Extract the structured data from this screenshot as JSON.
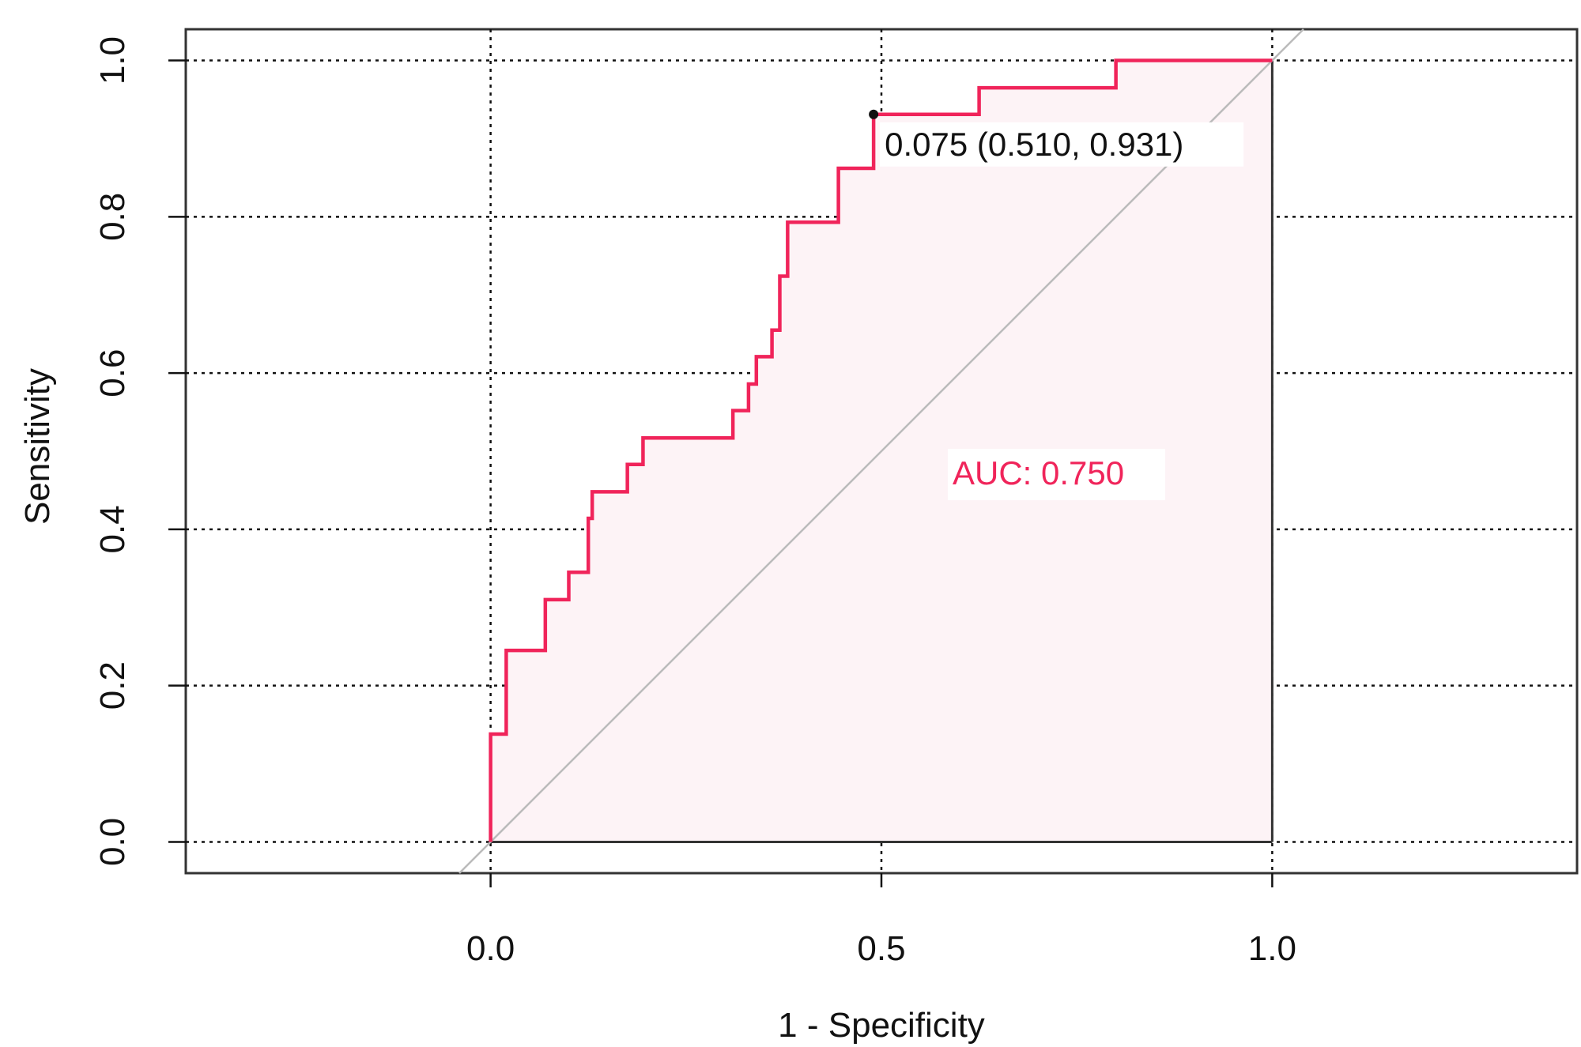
{
  "chart_data": {
    "type": "line",
    "title": "",
    "xlabel": "1 - Specificity",
    "ylabel": "Sensitivity",
    "xlim": [
      -0.39,
      1.39
    ],
    "ylim": [
      -0.04,
      1.04
    ],
    "x_ticks": [
      "0.0",
      "0.5",
      "1.0"
    ],
    "y_ticks": [
      "0.0",
      "0.2",
      "0.4",
      "0.6",
      "0.8",
      "1.0"
    ],
    "grid": true,
    "series": [
      {
        "name": "",
        "color": "#f0245a",
        "fill": "#fdf3f6",
        "points": [
          [
            0.0,
            0.0
          ],
          [
            0.0,
            0.138
          ],
          [
            0.02,
            0.138
          ],
          [
            0.02,
            0.245
          ],
          [
            0.07,
            0.245
          ],
          [
            0.07,
            0.31
          ],
          [
            0.1,
            0.31
          ],
          [
            0.1,
            0.345
          ],
          [
            0.125,
            0.345
          ],
          [
            0.125,
            0.414
          ],
          [
            0.13,
            0.414
          ],
          [
            0.13,
            0.448
          ],
          [
            0.175,
            0.448
          ],
          [
            0.175,
            0.483
          ],
          [
            0.195,
            0.483
          ],
          [
            0.195,
            0.517
          ],
          [
            0.31,
            0.517
          ],
          [
            0.31,
            0.552
          ],
          [
            0.33,
            0.552
          ],
          [
            0.33,
            0.586
          ],
          [
            0.34,
            0.586
          ],
          [
            0.34,
            0.621
          ],
          [
            0.36,
            0.621
          ],
          [
            0.36,
            0.655
          ],
          [
            0.37,
            0.655
          ],
          [
            0.37,
            0.724
          ],
          [
            0.38,
            0.724
          ],
          [
            0.38,
            0.793
          ],
          [
            0.445,
            0.793
          ],
          [
            0.445,
            0.862
          ],
          [
            0.49,
            0.862
          ],
          [
            0.49,
            0.931
          ],
          [
            0.625,
            0.931
          ],
          [
            0.625,
            0.965
          ],
          [
            0.8,
            0.965
          ],
          [
            0.8,
            1.0
          ],
          [
            1.0,
            1.0
          ]
        ]
      }
    ],
    "reference_line": {
      "from": [
        -0.04,
        -0.04
      ],
      "to": [
        1.04,
        1.04
      ],
      "color": "#bbbbbb"
    },
    "best_point": {
      "x": 0.49,
      "y": 0.931,
      "label": "0.075 (0.510, 0.931)",
      "color": "#111111"
    },
    "auc_label": {
      "text": "AUC: 0.750",
      "color": "#f0245a"
    }
  }
}
